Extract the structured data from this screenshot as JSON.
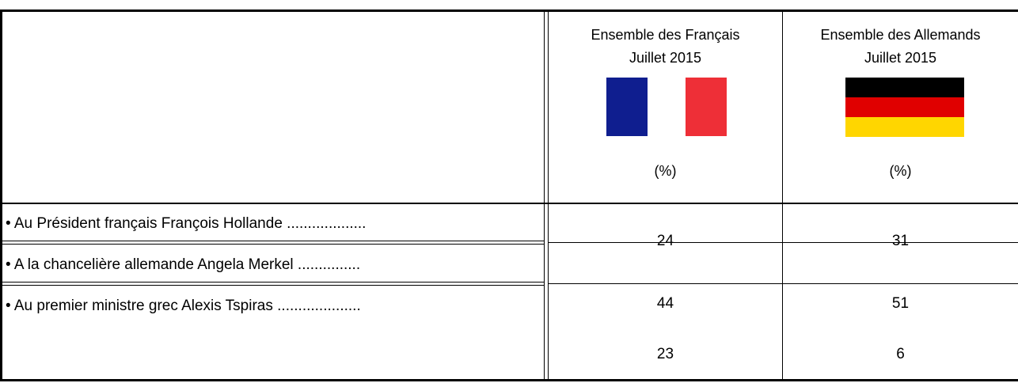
{
  "table": {
    "columns": [
      {
        "title": "Ensemble des Français",
        "date": "Juillet 2015",
        "unit": "(%)"
      },
      {
        "title": "Ensemble des Allemands",
        "date": "Juillet 2015",
        "unit": "(%)"
      }
    ],
    "rows": [
      {
        "label": "• Au Président français François Hollande ...................",
        "values": [
          24,
          31
        ]
      },
      {
        "label": "• A la chancelière allemande Angela Merkel ...............",
        "values": [
          44,
          51
        ]
      },
      {
        "label": "• Au premier ministre grec Alexis Tspiras ....................",
        "values": [
          23,
          6
        ]
      }
    ]
  }
}
